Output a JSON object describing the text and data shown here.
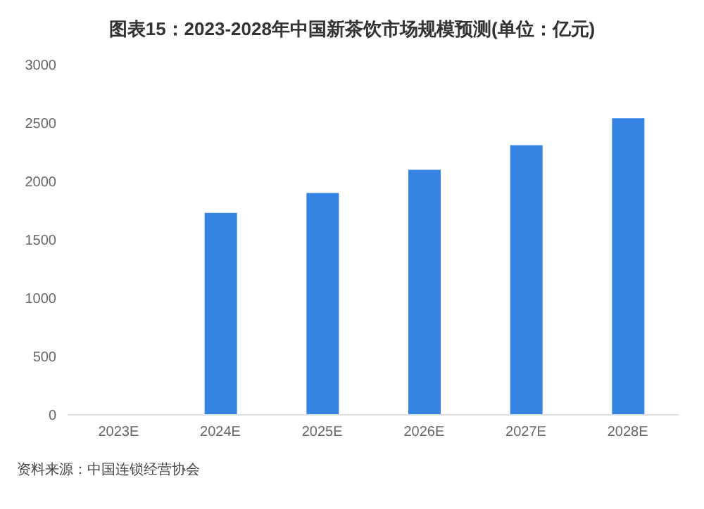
{
  "chart_data": {
    "type": "bar",
    "title": "图表15：2023-2028年中国新茶饮市场规模预测(单位：亿元)",
    "categories": [
      "2023E",
      "2024E",
      "2025E",
      "2026E",
      "2027E",
      "2028E"
    ],
    "values": [
      null,
      1730,
      1900,
      2100,
      2310,
      2540
    ],
    "color": "#3584e4",
    "ylim": [
      0,
      3000
    ],
    "yticks": [
      0,
      500,
      1000,
      1500,
      2000,
      2500,
      3000
    ],
    "grid": false,
    "annotations": [
      "资料来源：中国连锁经营协会"
    ]
  }
}
